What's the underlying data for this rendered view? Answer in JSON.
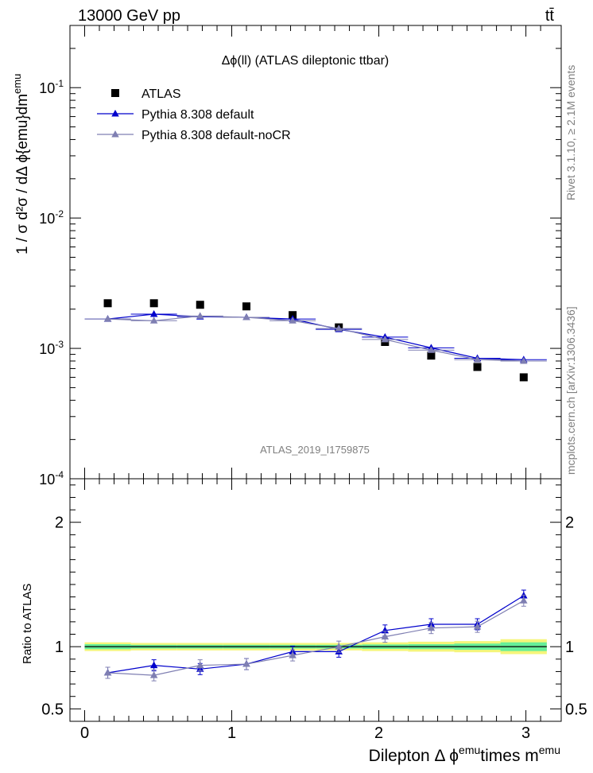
{
  "header": {
    "energy_label": "13000 GeV pp",
    "process_label": "tt̄",
    "plot_title": "Δϕ(ll) (ATLAS dileptonic ttbar)",
    "analysis_id": "ATLAS_2019_I1759875",
    "right_side_text": "mcplots.cern.ch [arXiv:1306.3436]",
    "right_side_text_top": "Rivet 3.1.10, ≥ 2.1M events"
  },
  "axes": {
    "y_main_label": "1 / σ d²σ / dΔ ϕ{emu}dm^emu",
    "y_ratio_label": "Ratio to ATLAS",
    "x_label": "Dilepton Δ ϕ^emu times m^emu"
  },
  "chart_data": [
    {
      "type": "scatter",
      "panel": "main",
      "yscale": "log",
      "xlim": [
        -0.1,
        3.24
      ],
      "ylim": [
        0.0001,
        0.3
      ],
      "y_ticks": [
        "10^-4",
        "10^-3",
        "10^-2",
        "10^-1"
      ],
      "x_bin_edges": [
        0,
        0.314,
        0.628,
        0.942,
        1.257,
        1.571,
        1.885,
        2.199,
        2.513,
        2.827,
        3.142
      ],
      "x": [
        0.157,
        0.471,
        0.785,
        1.1,
        1.414,
        1.728,
        2.042,
        2.356,
        2.67,
        2.985
      ],
      "series": [
        {
          "name": "ATLAS",
          "color": "#000000",
          "marker": "square",
          "values": [
            0.00222,
            0.00222,
            0.00216,
            0.0021,
            0.0018,
            0.00145,
            0.00112,
            0.00088,
            0.00072,
            0.0006
          ]
        },
        {
          "name": "Pythia 8.308 default",
          "color": "#0000cc",
          "marker": "triangle",
          "values": [
            0.00168,
            0.00183,
            0.00175,
            0.00173,
            0.00168,
            0.0014,
            0.00122,
            0.00101,
            0.00084,
            0.00082
          ]
        },
        {
          "name": "Pythia 8.308 default-noCR",
          "color": "#7f7fb2",
          "marker": "triangle",
          "values": [
            0.00168,
            0.00163,
            0.00177,
            0.00173,
            0.00163,
            0.00142,
            0.00117,
            0.00097,
            0.00082,
            0.0008
          ]
        }
      ]
    },
    {
      "type": "line",
      "panel": "ratio",
      "ylim": [
        0.4,
        2.35
      ],
      "y_ticks": [
        "0.5",
        "1",
        "2"
      ],
      "x_ticks": [
        "0",
        "1",
        "2",
        "3"
      ],
      "x": [
        0.157,
        0.471,
        0.785,
        1.1,
        1.414,
        1.728,
        2.042,
        2.356,
        2.67,
        2.985
      ],
      "band": {
        "color_inner": "#66ee99",
        "color_outer": "#f5f57a",
        "half_width_inner": [
          0.02,
          0.015,
          0.015,
          0.015,
          0.015,
          0.015,
          0.018,
          0.02,
          0.025,
          0.035
        ],
        "half_width_outer": [
          0.035,
          0.03,
          0.03,
          0.03,
          0.03,
          0.03,
          0.035,
          0.04,
          0.045,
          0.06
        ]
      },
      "series": [
        {
          "name": "Pythia 8.308 default",
          "color": "#0000cc",
          "values": [
            0.79,
            0.85,
            0.82,
            0.86,
            0.96,
            0.96,
            1.13,
            1.18,
            1.18,
            1.41
          ]
        },
        {
          "name": "Pythia 8.308 default-noCR",
          "color": "#7f7fb2",
          "values": [
            0.79,
            0.77,
            0.85,
            0.86,
            0.93,
            1.0,
            1.08,
            1.15,
            1.16,
            1.37
          ]
        }
      ]
    }
  ]
}
